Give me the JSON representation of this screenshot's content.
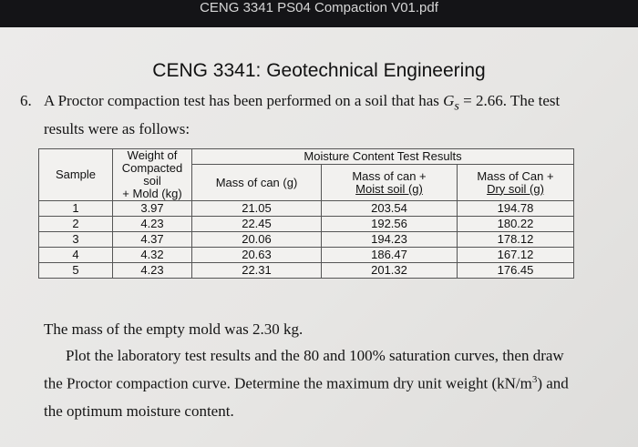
{
  "window": {
    "title": "CENG 3341 PS04 Compaction V01.pdf"
  },
  "document": {
    "course_title": "CENG 3341: Geotechnical Engineering",
    "question_number": "6.",
    "intro_line1_a": "A Proctor compaction test has been performed on a soil that has ",
    "gs_symbol": "G",
    "gs_sub": "s",
    "intro_line1_b": " = 2.66. The test",
    "intro_line2": "results were as follows:",
    "table": {
      "col_sample": "Sample",
      "col_weight_1": "Weight of",
      "col_weight_2": "Compacted soil",
      "col_weight_3": "+ Mold (kg)",
      "group_header": "Moisture Content Test Results",
      "col_can": "Mass of can (g)",
      "col_moist_1": "Mass of can +",
      "col_moist_2": "Moist soil (g)",
      "col_dry_1": "Mass of Can +",
      "col_dry_2": "Dry soil (g)",
      "rows": [
        [
          "1",
          "3.97",
          "21.05",
          "203.54",
          "194.78"
        ],
        [
          "2",
          "4.23",
          "22.45",
          "192.56",
          "180.22"
        ],
        [
          "3",
          "4.37",
          "20.06",
          "194.23",
          "178.12"
        ],
        [
          "4",
          "4.32",
          "20.63",
          "186.47",
          "167.12"
        ],
        [
          "5",
          "4.23",
          "22.31",
          "201.32",
          "176.45"
        ]
      ]
    },
    "mold_mass_text": "The mass of the empty mold was 2.30 kg.",
    "task_line1": "Plot the laboratory test results and the 80 and 100% saturation curves, then draw",
    "task_line2_a": "the Proctor compaction curve. Determine the maximum dry unit weight (kN/m",
    "task_line2_sup": "3",
    "task_line2_b": ") and",
    "task_line3": "the optimum moisture content."
  }
}
